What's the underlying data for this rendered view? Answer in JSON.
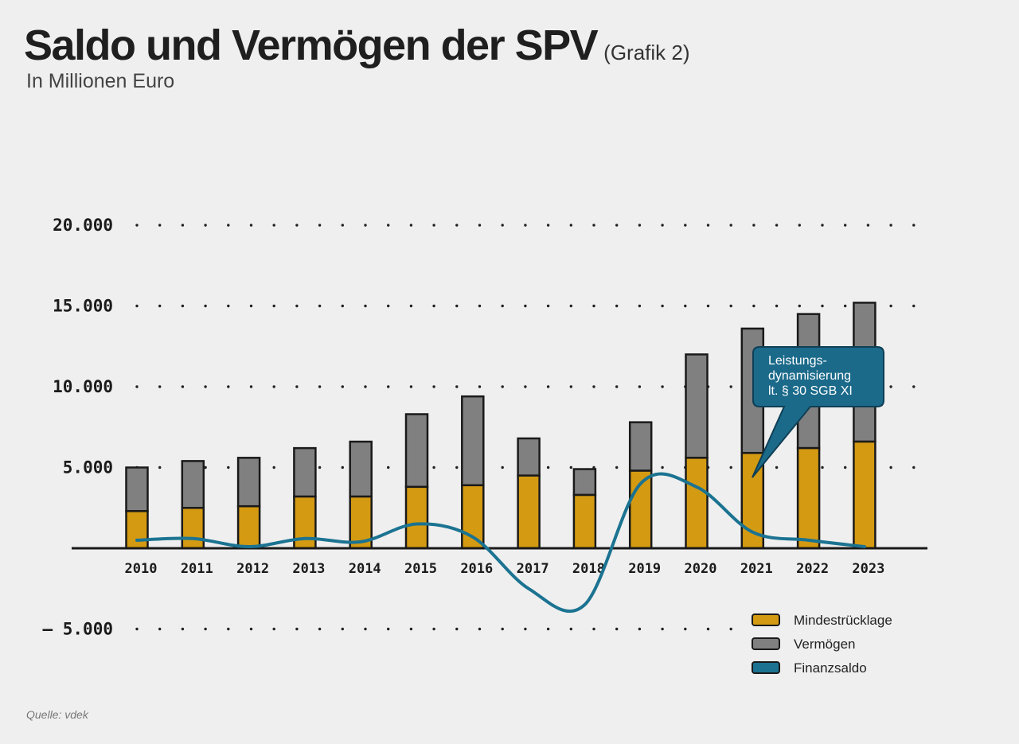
{
  "header": {
    "title": "Saldo und Vermögen der SPV",
    "title_suffix": "(Grafik 2)",
    "subtitle": "In Millionen Euro"
  },
  "source": "Quelle: vdek",
  "chart_data": {
    "type": "bar",
    "stacked": true,
    "categories": [
      "2010",
      "2011",
      "2012",
      "2013",
      "2014",
      "2015",
      "2016",
      "2017",
      "2018",
      "2019",
      "2020",
      "2021",
      "2022",
      "2023"
    ],
    "series": [
      {
        "name": "Mindestrücklage",
        "color": "#d49a12",
        "values": [
          2300,
          2500,
          2600,
          3200,
          3200,
          3800,
          3900,
          4500,
          3300,
          4800,
          5600,
          5900,
          6200,
          6600
        ]
      },
      {
        "name": "Vermögen",
        "color": "#808080",
        "values": [
          2700,
          2900,
          3000,
          3000,
          3400,
          4500,
          5500,
          2300,
          1600,
          3000,
          6400,
          7700,
          8300,
          8600
        ]
      },
      {
        "name": "Finanzsaldo",
        "type": "line",
        "color": "#1b7391",
        "values": [
          500,
          600,
          100,
          600,
          400,
          1500,
          700,
          -2500,
          -3500,
          4000,
          3800,
          1000,
          500,
          100
        ]
      }
    ],
    "yticks": [
      20000,
      15000,
      10000,
      5000,
      -5000
    ],
    "ytick_labels": [
      "20.000",
      "15.000",
      "10.000",
      "5.000",
      "– 5.000"
    ],
    "ylim": [
      -5000,
      20000
    ],
    "legend": [
      "Mindestrücklage",
      "Vermögen",
      "Finanzsaldo"
    ],
    "legend_position": "bottom-right",
    "annotation": {
      "lines": [
        "Leistungs-",
        "dynamisierung",
        "lt. § 30 SGB XI"
      ],
      "target": "2021",
      "color": "#1b6a8a"
    }
  }
}
